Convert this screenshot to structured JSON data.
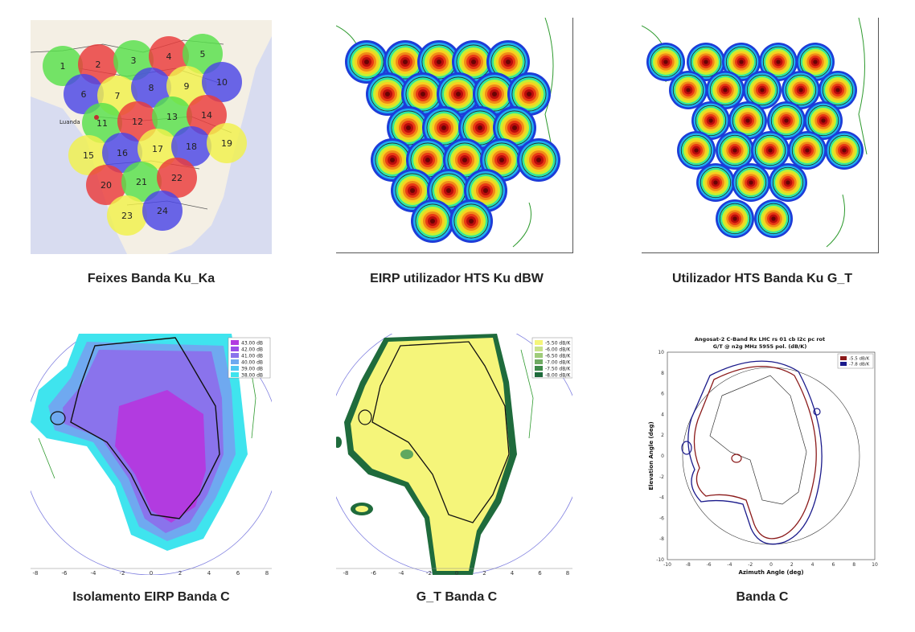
{
  "gallery": {
    "items": [
      {
        "caption": "Feixes Banda Ku_Ka",
        "city": "Luanda",
        "beams": [
          {
            "n": "1",
            "c": "#57e04a"
          },
          {
            "n": "2",
            "c": "#ea3b3b"
          },
          {
            "n": "3",
            "c": "#57e04a"
          },
          {
            "n": "4",
            "c": "#ea3b3b"
          },
          {
            "n": "5",
            "c": "#57e04a"
          },
          {
            "n": "6",
            "c": "#4a46e6"
          },
          {
            "n": "7",
            "c": "#f2f24a"
          },
          {
            "n": "8",
            "c": "#4a46e6"
          },
          {
            "n": "9",
            "c": "#f2f24a"
          },
          {
            "n": "10",
            "c": "#4a46e6"
          },
          {
            "n": "11",
            "c": "#57e04a"
          },
          {
            "n": "12",
            "c": "#ea3b3b"
          },
          {
            "n": "13",
            "c": "#57e04a"
          },
          {
            "n": "14",
            "c": "#ea3b3b"
          },
          {
            "n": "15",
            "c": "#f2f24a"
          },
          {
            "n": "16",
            "c": "#4a46e6"
          },
          {
            "n": "17",
            "c": "#f2f24a"
          },
          {
            "n": "18",
            "c": "#4a46e6"
          },
          {
            "n": "19",
            "c": "#f2f24a"
          },
          {
            "n": "20",
            "c": "#ea3b3b"
          },
          {
            "n": "21",
            "c": "#57e04a"
          },
          {
            "n": "22",
            "c": "#ea3b3b"
          },
          {
            "n": "23",
            "c": "#f2f24a"
          },
          {
            "n": "24",
            "c": "#4a46e6"
          }
        ]
      },
      {
        "caption": "EIRP utilizador HTS Ku dBW"
      },
      {
        "caption": "Utilizador HTS Banda Ku G_T"
      },
      {
        "caption": "Isolamento EIRP Banda C",
        "legend": [
          "43.00 dB",
          "42.00 dB",
          "41.00 dB",
          "40.00 dB",
          "39.00 dB",
          "38.00 dB"
        ],
        "x_ticks": [
          "-8",
          "-6",
          "-4",
          "-2",
          "0",
          "2",
          "4",
          "6",
          "8"
        ]
      },
      {
        "caption": "G_T Banda C",
        "legend": [
          "-5.50 dB/K",
          "-6.00 dB/K",
          "-6.50 dB/K",
          "-7.00 dB/K",
          "-7.50 dB/K",
          "-8.00 dB/K"
        ],
        "x_ticks": [
          "-8",
          "-6",
          "-4",
          "-2",
          "0",
          "2",
          "4",
          "6",
          "8"
        ]
      },
      {
        "caption": "Banda C",
        "title_line1": "Angosat-2 C-Band Rx LHC rs 01 cb I2c pc rot",
        "title_line2": "G/T @ n2g MHz 5955 pol. (dB/K)",
        "legend": [
          "-5.5 dB/K",
          "-7.8 dB/K"
        ],
        "xlabel": "Azimuth Angle (deg)",
        "ylabel": "Elevation Angle (deg)",
        "x_ticks": [
          "-10",
          "-8",
          "-6",
          "-4",
          "-2",
          "0",
          "2",
          "4",
          "6",
          "8",
          "10"
        ],
        "y_ticks": [
          "10",
          "8",
          "6",
          "4",
          "2",
          "0",
          "-2",
          "-4",
          "-6",
          "-8",
          "-10"
        ]
      }
    ]
  },
  "colors": {
    "beam_red": "#ea3b3b",
    "beam_green": "#57e04a",
    "beam_blue": "#4a46e6",
    "beam_yellow": "#f2f24a",
    "purple": "#b23be0",
    "cyan": "#3fe4ee",
    "yellow": "#f5f57a",
    "dark_green": "#1f6b3c",
    "line_red": "#8b1a1a",
    "line_blue": "#1a1a8b"
  }
}
